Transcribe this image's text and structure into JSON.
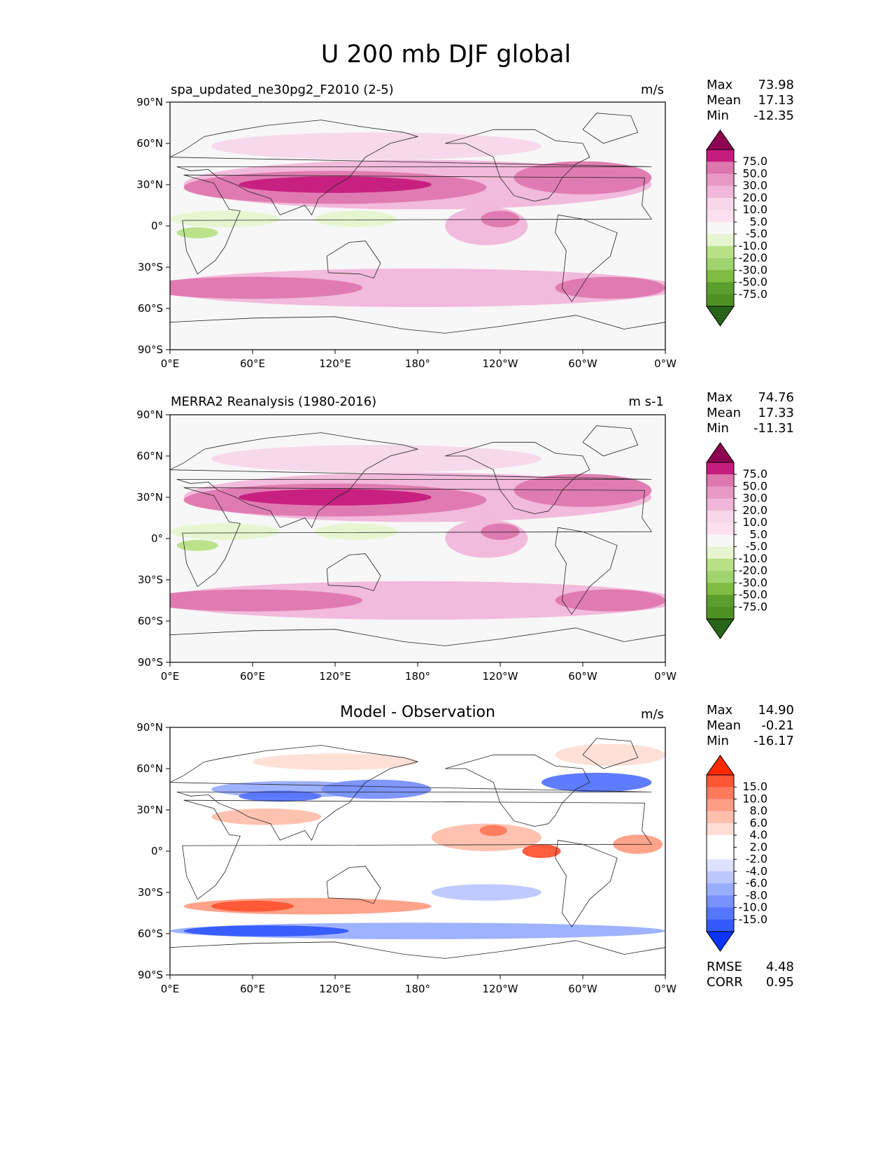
{
  "figure_title": "U 200 mb DJF global",
  "panels": [
    {
      "title": "spa_updated_ne30pg2_F2010 (2-5)",
      "units": "m/s",
      "stats": [
        {
          "label": "Max",
          "value": "73.98"
        },
        {
          "label": "Mean",
          "value": "17.13"
        },
        {
          "label": "Min",
          "value": "-12.35"
        }
      ]
    },
    {
      "title": "MERRA2 Reanalysis (1980-2016)",
      "units": "m s-1",
      "stats": [
        {
          "label": "Max",
          "value": "74.76"
        },
        {
          "label": "Mean",
          "value": "17.33"
        },
        {
          "label": "Min",
          "value": "-11.31"
        }
      ]
    },
    {
      "title": "Model - Observation",
      "units": "m/s",
      "stats": [
        {
          "label": "Max",
          "value": "14.90"
        },
        {
          "label": "Mean",
          "value": "-0.21"
        },
        {
          "label": "Min",
          "value": "-16.17"
        }
      ],
      "extra_stats": [
        {
          "label": "RMSE",
          "value": "4.48"
        },
        {
          "label": "CORR",
          "value": "0.95"
        }
      ]
    }
  ],
  "chart_data": [
    {
      "type": "heatmap",
      "title": "spa_updated_ne30pg2_F2010 (2-5)",
      "variable": "U 200 mb DJF global",
      "units": "m/s",
      "x_ticks": [
        "0°E",
        "60°E",
        "120°E",
        "180°",
        "120°W",
        "60°W",
        "0°W"
      ],
      "y_ticks": [
        "90°N",
        "60°N",
        "30°N",
        "0°",
        "30°S",
        "60°S",
        "90°S"
      ],
      "xlim": [
        0,
        360
      ],
      "ylim": [
        -90,
        90
      ],
      "colorbar_levels": [
        "75.0",
        "50.0",
        "30.0",
        "20.0",
        "10.0",
        "5.0",
        "-5.0",
        "-10.0",
        "-20.0",
        "-30.0",
        "-50.0",
        "-75.0"
      ],
      "colorbar_colors": [
        "#8e0152",
        "#c51b7d",
        "#de77ae",
        "#e79ac3",
        "#f1b6da",
        "#f7d7ea",
        "#fde0ef",
        "#f7f7f7",
        "#e6f5d0",
        "#b8e186",
        "#9fd46e",
        "#7fbc41",
        "#5a9e2d",
        "#4d9221",
        "#276419"
      ]
    },
    {
      "type": "heatmap",
      "title": "MERRA2 Reanalysis (1980-2016)",
      "variable": "U 200 mb DJF global",
      "units": "m s-1",
      "x_ticks": [
        "0°E",
        "60°E",
        "120°E",
        "180°",
        "120°W",
        "60°W",
        "0°W"
      ],
      "y_ticks": [
        "90°N",
        "60°N",
        "30°N",
        "0°",
        "30°S",
        "60°S",
        "90°S"
      ],
      "xlim": [
        0,
        360
      ],
      "ylim": [
        -90,
        90
      ],
      "colorbar_levels": [
        "75.0",
        "50.0",
        "30.0",
        "20.0",
        "10.0",
        "5.0",
        "-5.0",
        "-10.0",
        "-20.0",
        "-30.0",
        "-50.0",
        "-75.0"
      ],
      "colorbar_colors": [
        "#8e0152",
        "#c51b7d",
        "#de77ae",
        "#e79ac3",
        "#f1b6da",
        "#f7d7ea",
        "#fde0ef",
        "#f7f7f7",
        "#e6f5d0",
        "#b8e186",
        "#9fd46e",
        "#7fbc41",
        "#5a9e2d",
        "#4d9221",
        "#276419"
      ]
    },
    {
      "type": "heatmap",
      "title": "Model - Observation",
      "variable": "U 200 mb DJF global",
      "units": "m/s",
      "x_ticks": [
        "0°E",
        "60°E",
        "120°E",
        "180°",
        "120°W",
        "60°W",
        "0°W"
      ],
      "y_ticks": [
        "90°N",
        "60°N",
        "30°N",
        "0°",
        "30°S",
        "60°S",
        "90°S"
      ],
      "xlim": [
        0,
        360
      ],
      "ylim": [
        -90,
        90
      ],
      "colorbar_levels": [
        "15.0",
        "10.0",
        "8.0",
        "6.0",
        "4.0",
        "2.0",
        "-2.0",
        "-4.0",
        "-6.0",
        "-8.0",
        "-10.0",
        "-15.0"
      ],
      "colorbar_colors": [
        "#ff2a00",
        "#ff5533",
        "#ff7a5c",
        "#ff9e85",
        "#ffbfad",
        "#ffded5",
        "#ffffff",
        "#ffffff",
        "#dde3ff",
        "#bcc8ff",
        "#9aaeff",
        "#7891ff",
        "#5575ff",
        "#335aff",
        "#0a33ff"
      ],
      "rmse": "4.48",
      "corr": "0.95"
    }
  ]
}
